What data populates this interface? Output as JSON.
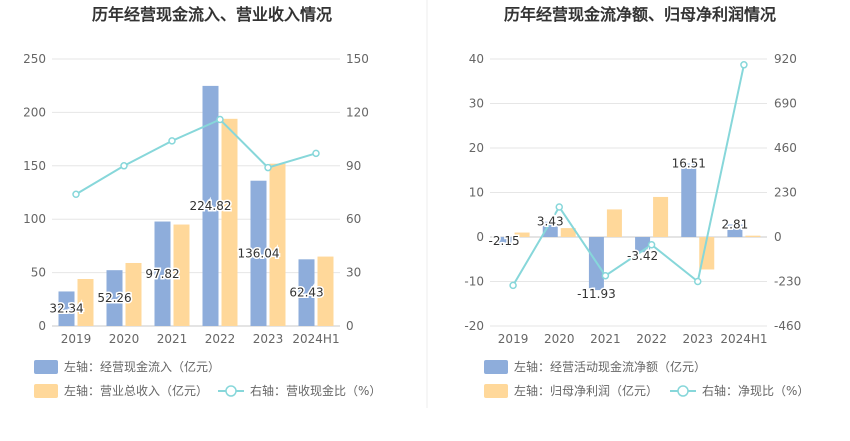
{
  "colors": {
    "bar_primary": "#8EADDB",
    "bar_secondary": "#FFD89A",
    "line": "#87D7DA",
    "grid": "#E6E6E6",
    "axis": "#C8C8C8",
    "text": "#666666",
    "title": "#333333",
    "label": "#333333"
  },
  "chart_data": [
    {
      "type": "bar",
      "title": "历年经营现金流入、营业收入情况",
      "categories": [
        "2019",
        "2020",
        "2021",
        "2022",
        "2023",
        "2024H1"
      ],
      "left_axis": {
        "min": 0,
        "max": 250,
        "ticks": [
          0,
          50,
          100,
          150,
          200,
          250
        ]
      },
      "right_axis": {
        "min": 0,
        "max": 150,
        "ticks": [
          0,
          30,
          60,
          90,
          120,
          150
        ]
      },
      "series": [
        {
          "name": "左轴：经营现金流入（亿元）",
          "type": "bar",
          "axis": "left",
          "color": "#8EADDB",
          "values": [
            32.34,
            52.26,
            97.82,
            224.82,
            136.04,
            62.43
          ],
          "labels": [
            "32.34",
            "52.26",
            "97.82",
            "224.82",
            "136.04",
            "62.43"
          ]
        },
        {
          "name": "左轴：营业总收入（亿元）",
          "type": "bar",
          "axis": "left",
          "color": "#FFD89A",
          "values": [
            44,
            59,
            95,
            194,
            152,
            65
          ]
        },
        {
          "name": "右轴：营收现金比（%）",
          "type": "line",
          "axis": "right",
          "color": "#87D7DA",
          "values": [
            74,
            90,
            104,
            116,
            89,
            97
          ]
        }
      ],
      "legend_position": "bottom-left",
      "grid": true
    },
    {
      "type": "bar",
      "title": "历年经营现金流净额、归母净利润情况",
      "categories": [
        "2019",
        "2020",
        "2021",
        "2022",
        "2023",
        "2024H1"
      ],
      "left_axis": {
        "min": -20,
        "max": 40,
        "ticks": [
          -20,
          -10,
          0,
          10,
          20,
          30,
          40
        ]
      },
      "right_axis": {
        "min": -460,
        "max": 920,
        "ticks": [
          -460,
          -230,
          0,
          230,
          460,
          690,
          920
        ]
      },
      "series": [
        {
          "name": "左轴：经营活动现金流净额（亿元）",
          "type": "bar",
          "axis": "left",
          "color": "#8EADDB",
          "values": [
            -2.15,
            3.43,
            -11.93,
            -3.42,
            16.51,
            2.81
          ],
          "labels": [
            "-2.15",
            "3.43",
            "-11.93",
            "-3.42",
            "16.51",
            "2.81"
          ]
        },
        {
          "name": "左轴：归母净利润（亿元）",
          "type": "bar",
          "axis": "left",
          "color": "#FFD89A",
          "values": [
            1.0,
            2.0,
            6.2,
            9.0,
            -7.3,
            0.3
          ]
        },
        {
          "name": "右轴：净现比（%）",
          "type": "line",
          "axis": "right",
          "color": "#87D7DA",
          "values": [
            -250,
            155,
            -200,
            -40,
            -230,
            890
          ]
        }
      ],
      "legend_position": "bottom-left",
      "grid": true
    }
  ]
}
